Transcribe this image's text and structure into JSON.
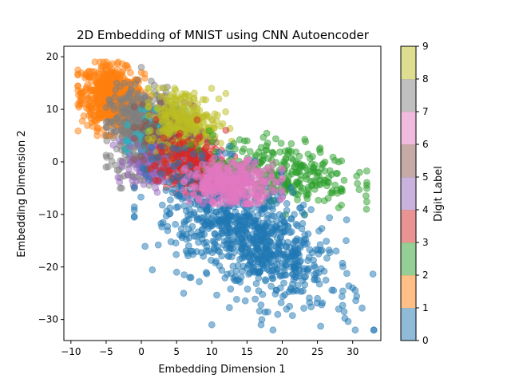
{
  "chart_data": {
    "type": "scatter",
    "title": "2D Embedding of MNIST using CNN Autoencoder",
    "xlabel": "Embedding Dimension 1",
    "ylabel": "Embedding Dimension 2",
    "xlim": [
      -11,
      34
    ],
    "ylim": [
      -34,
      22
    ],
    "x_ticks": [
      -10,
      -5,
      0,
      5,
      10,
      15,
      20,
      25,
      30
    ],
    "y_ticks": [
      -30,
      -20,
      -10,
      0,
      10,
      20
    ],
    "grid": false,
    "point_opacity": 0.5,
    "colorbar": {
      "label": "Digit Label",
      "range": [
        0,
        9
      ],
      "ticks": [
        0,
        1,
        2,
        3,
        4,
        5,
        6,
        7,
        8,
        9
      ],
      "colormap": "tab10"
    },
    "series": [
      {
        "label": 0,
        "color": "#1f77b4",
        "count": 900,
        "center": [
          15,
          -14
        ],
        "spread": [
          6,
          6.5
        ],
        "corr": -0.55,
        "xlim": [
          -1,
          33
        ],
        "ylim": [
          -32,
          3
        ],
        "points_approx": [
          [
            11,
            -10
          ],
          [
            9,
            -6
          ],
          [
            14,
            -12
          ],
          [
            18,
            -18
          ],
          [
            22,
            -22
          ],
          [
            25,
            -26
          ],
          [
            30,
            -24
          ],
          [
            17,
            -31
          ],
          [
            10,
            -31
          ],
          [
            6,
            -25
          ],
          [
            5,
            -21
          ],
          [
            28,
            -28
          ]
        ]
      },
      {
        "label": 1,
        "color": "#ff7f0e",
        "count": 700,
        "center": [
          -4,
          12
        ],
        "spread": [
          2.2,
          3
        ],
        "corr": -0.2,
        "xlim": [
          -9,
          3
        ],
        "ylim": [
          5,
          19
        ],
        "points_approx": [
          [
            -5,
            12
          ],
          [
            -3,
            15
          ],
          [
            -7,
            10
          ],
          [
            -1,
            13
          ],
          [
            -8,
            16
          ],
          [
            0,
            17
          ]
        ]
      },
      {
        "label": 2,
        "color": "#2ca02c",
        "count": 300,
        "center": [
          20,
          -2
        ],
        "spread": [
          5,
          3
        ],
        "corr": -0.3,
        "xlim": [
          7,
          32
        ],
        "ylim": [
          -10,
          9
        ],
        "points_approx": [
          [
            18,
            -1
          ],
          [
            22,
            0
          ],
          [
            25,
            -2
          ],
          [
            28,
            0
          ],
          [
            31,
            -2
          ],
          [
            15,
            4
          ]
        ]
      },
      {
        "label": 3,
        "color": "#d62728",
        "count": 250,
        "center": [
          7,
          -1
        ],
        "spread": [
          2.5,
          2.8
        ],
        "corr": 0,
        "xlim": [
          0,
          14
        ],
        "ylim": [
          -6,
          8
        ],
        "points_approx": [
          [
            6,
            -1
          ],
          [
            8,
            2
          ],
          [
            5,
            -3
          ],
          [
            10,
            3
          ],
          [
            12,
            6
          ]
        ]
      },
      {
        "label": 4,
        "color": "#9467bd",
        "count": 200,
        "center": [
          2,
          0
        ],
        "spread": [
          2,
          2.5
        ],
        "corr": 0,
        "xlim": [
          -4,
          8
        ],
        "ylim": [
          -8,
          6
        ],
        "points_approx": [
          [
            1,
            0
          ],
          [
            3,
            -2
          ],
          [
            0,
            2
          ],
          [
            2,
            -5
          ]
        ]
      },
      {
        "label": 5,
        "color": "#8c564b",
        "count": 200,
        "center": [
          5,
          5
        ],
        "spread": [
          2.5,
          3
        ],
        "corr": 0,
        "xlim": [
          -1,
          12
        ],
        "ylim": [
          -3,
          13
        ],
        "points_approx": [
          [
            4,
            5
          ],
          [
            6,
            8
          ],
          [
            3,
            2
          ],
          [
            7,
            11
          ]
        ]
      },
      {
        "label": 6,
        "color": "#e377c2",
        "count": 350,
        "center": [
          13,
          -4
        ],
        "spread": [
          3.2,
          2
        ],
        "corr": 0,
        "xlim": [
          6,
          20
        ],
        "ylim": [
          -8,
          1
        ],
        "points_approx": [
          [
            12,
            -4
          ],
          [
            15,
            -5
          ],
          [
            10,
            -3
          ],
          [
            17,
            -3
          ]
        ]
      },
      {
        "label": 7,
        "color": "#7f7f7f",
        "count": 500,
        "center": [
          0,
          6
        ],
        "spread": [
          2.2,
          4
        ],
        "corr": 0,
        "xlim": [
          -5,
          5
        ],
        "ylim": [
          -5,
          19
        ],
        "points_approx": [
          [
            0,
            6
          ],
          [
            -2,
            4
          ],
          [
            1,
            9
          ],
          [
            -3,
            -3
          ],
          [
            0,
            18
          ]
        ]
      },
      {
        "label": 8,
        "color": "#bcbd22",
        "count": 250,
        "center": [
          6,
          8
        ],
        "spread": [
          2.5,
          3
        ],
        "corr": -0.2,
        "xlim": [
          1,
          14
        ],
        "ylim": [
          0,
          14
        ],
        "points_approx": [
          [
            6,
            9
          ],
          [
            8,
            11
          ],
          [
            4,
            6
          ],
          [
            11,
            12
          ],
          [
            12,
            13
          ]
        ]
      },
      {
        "label": 9,
        "color": "#17becf",
        "count": 200,
        "center": [
          3,
          4
        ],
        "spread": [
          2,
          2.5
        ],
        "corr": 0,
        "xlim": [
          -3,
          8
        ],
        "ylim": [
          -2,
          10
        ],
        "points_approx": [
          [
            3,
            4
          ],
          [
            2,
            6
          ],
          [
            4,
            1
          ],
          [
            -2,
            7
          ]
        ]
      }
    ]
  }
}
